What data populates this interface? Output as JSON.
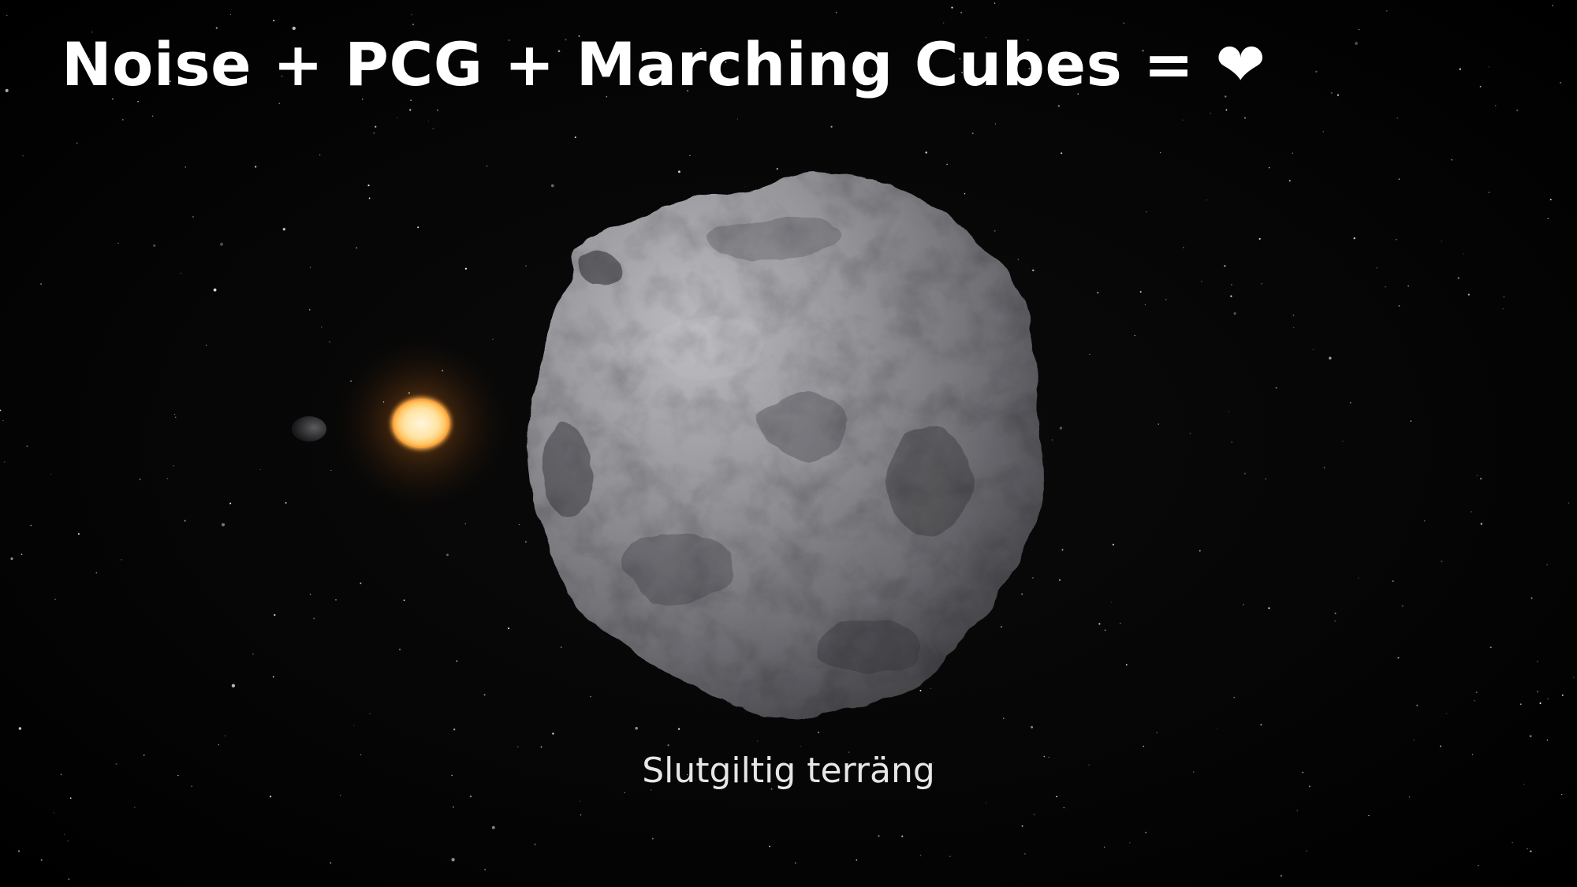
{
  "slide": {
    "title": "Noise + PCG + Marching Cubes = ❤",
    "caption": "Slutgiltig terräng"
  },
  "scene": {
    "background_color": "#000000",
    "text_color": "#ffffff",
    "sun_color": "#ffd98a",
    "asteroid_color": "#8f8f93"
  }
}
